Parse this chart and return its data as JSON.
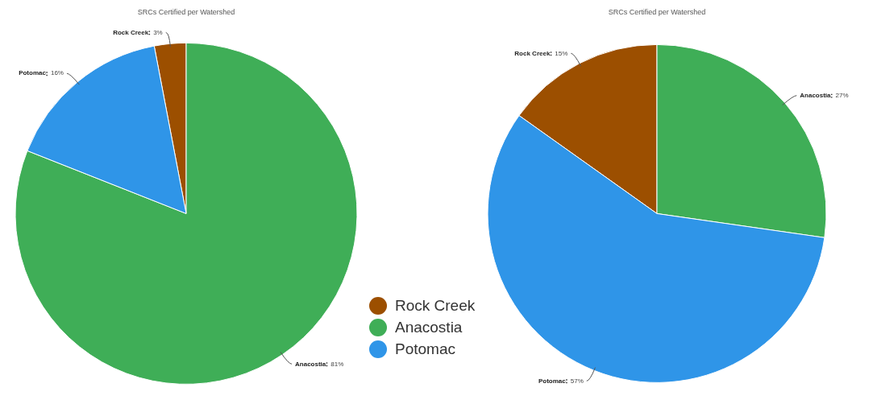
{
  "chart_data": [
    {
      "type": "pie",
      "title": "SRCs Certified per Watershed",
      "categories": [
        "Rock Creek",
        "Anacostia",
        "Potomac"
      ],
      "values": [
        3,
        81,
        16
      ],
      "colors": [
        "#9c4f00",
        "#3fae57",
        "#2f95e8"
      ],
      "value_labels": [
        "3%",
        "81%",
        "16%"
      ],
      "legend": "right"
    },
    {
      "type": "pie",
      "title": "SRCs Certified per Watershed",
      "categories": [
        "Rock Creek",
        "Anacostia",
        "Potomac"
      ],
      "values": [
        15,
        27,
        57
      ],
      "colors": [
        "#9c4f00",
        "#3fae57",
        "#2f95e8"
      ],
      "value_labels": [
        "15%",
        "27%",
        "57%"
      ]
    }
  ]
}
